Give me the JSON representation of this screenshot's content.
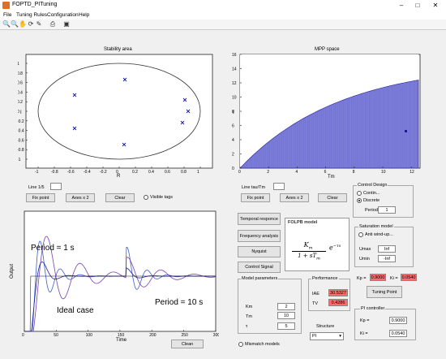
{
  "window": {
    "title": "FOPTD_PITuning",
    "minimize": "–",
    "maximize": "□",
    "close": "✕"
  },
  "menu": [
    "File",
    "Tuning Rules",
    "Configuration",
    "Help"
  ],
  "toolbar_icons": [
    "zoom-in-icon",
    "zoom-out-icon",
    "pan-icon",
    "rotate-icon",
    "data-cursor-icon",
    "print-icon",
    "save-icon"
  ],
  "stability": {
    "title": "Stability area",
    "xlabel": "R",
    "ylabel": "I",
    "x_ticks": [
      "-1",
      "-0.8",
      "-0.6",
      "-0.4",
      "-0.2",
      "0",
      "0.2",
      "0.4",
      "0.6",
      "0.8",
      "1"
    ],
    "y_ticks": [
      "1",
      "0.8",
      "0.6",
      "0.4",
      "0.2",
      "0",
      "-0.2",
      "-0.4",
      "-0.6",
      "-0.8",
      "-1"
    ],
    "line_label": "Line 1/5",
    "line_value": "",
    "fix_point": "Fix point",
    "axes_x2": "Axes x 2",
    "clear": "Clear",
    "visible_tags": "Visible tags"
  },
  "mpp": {
    "title": "MPP space",
    "xlabel": "Tm",
    "ylabel": "t",
    "x_ticks": [
      "0",
      "2",
      "4",
      "6",
      "8",
      "10",
      "12"
    ],
    "y_ticks": [
      "16",
      "14",
      "12",
      "10",
      "8",
      "6",
      "4",
      "2",
      "0"
    ],
    "line_label": "Line tau/Tm",
    "line_value": "",
    "fix_point": "Fix point",
    "axes_x2": "Axes x 2",
    "clear": "Clear"
  },
  "response": {
    "xlabel": "Time",
    "ylabel": "Output",
    "x_ticks": [
      "0",
      "50",
      "100",
      "150",
      "200",
      "250",
      "300"
    ],
    "annotations": {
      "period1": "Period = 1 s",
      "ideal": "Ideal case",
      "period10": "Period = 10 s"
    },
    "clean": "Clean"
  },
  "analysis_buttons": [
    "Temporal responce",
    "Frequency analysis",
    "Nyquist",
    "Control Signal"
  ],
  "model": {
    "title": "FOLPB model",
    "numerator": "K",
    "numerator_sub": "m",
    "denominator_prefix": "1 + sT",
    "denominator_sub": "m",
    "exp_prefix": "e",
    "exp": "−τs"
  },
  "model_parameters": {
    "title": "Model parameters",
    "km_label": "Km",
    "km_value": "2",
    "tm_label": "Tm",
    "tm_value": "10",
    "tau_label": "τ",
    "tau_value": "5"
  },
  "performance": {
    "title": "Performance",
    "iae_label": "IAE",
    "iae_value": "30.5327",
    "tv_label": "TV",
    "tv_value": "0.4286"
  },
  "structure": {
    "title": "Structure",
    "value": "PI"
  },
  "mismatch": "Mismatch models",
  "control_design": {
    "title": "Control Design",
    "continuous": "Contin...",
    "discrete": "Discrete",
    "period_label": "Period",
    "period_value": "1"
  },
  "saturation": {
    "title": "Saturation model",
    "anti_windup": "Anti wind-up...",
    "umax_label": "Umax",
    "umax_value": "Inf",
    "umin_label": "Umin",
    "umin_value": "-Inf"
  },
  "gains_top": {
    "kp_label": "Kp =",
    "kp_value": "0.9000",
    "ki_label": "Ki =",
    "ki_value": "0.0540"
  },
  "tuning_point": "Tuning Point",
  "pi_controller": {
    "title": "PI controller",
    "kp_label": "Kp =",
    "kp_value": "0.9000",
    "ki_label": "Ki =",
    "ki_value": "0.0540"
  },
  "colors": {
    "mpp_fill": "#7b7bd8",
    "marker": "#1a1aa0",
    "red_field": "#ff6a6a"
  }
}
